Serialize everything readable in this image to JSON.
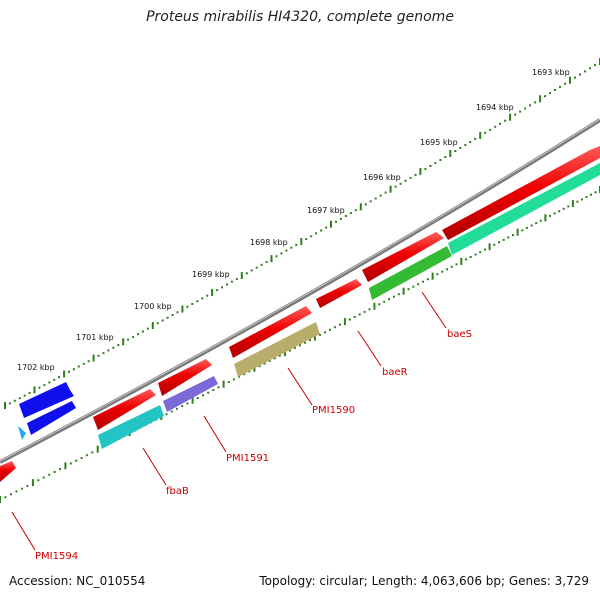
{
  "title": "Proteus mirabilis HI4320, complete genome",
  "footer": {
    "accession": "Accession: NC_010554",
    "stats": "Topology: circular; Length: 4,063,606 bp; Genes: 3,729"
  },
  "ruler": {
    "tick_labels": [
      "1693 kbp",
      "1694 kbp",
      "1695 kbp",
      "1696 kbp",
      "1697 kbp",
      "1698 kbp",
      "1699 kbp",
      "1700 kbp",
      "1701 kbp",
      "1702 kbp"
    ],
    "tick_color": "#2f7d1e"
  },
  "genes": [
    {
      "name": "baeS",
      "color": "#ee0000"
    },
    {
      "name": "baeR",
      "color": "#ee0000"
    },
    {
      "name": "PMI1590",
      "color": "#ee0000"
    },
    {
      "name": "PMI1591",
      "color": "#ee0000"
    },
    {
      "name": "fbaB",
      "color": "#ee0000"
    },
    {
      "name": "PMI1594",
      "color": "#ee0000"
    }
  ],
  "colors": {
    "backbone": "#7a7a7a",
    "cds": "#ee0000",
    "blue_feature": "#1010ee",
    "cyan_feature": "#22c4c4",
    "green_feature": "#33bb33",
    "teal_feature": "#22dd99",
    "olive_feature": "#b8ad6a",
    "purple_feature": "#7a6ad8",
    "label": "#cc0000"
  }
}
